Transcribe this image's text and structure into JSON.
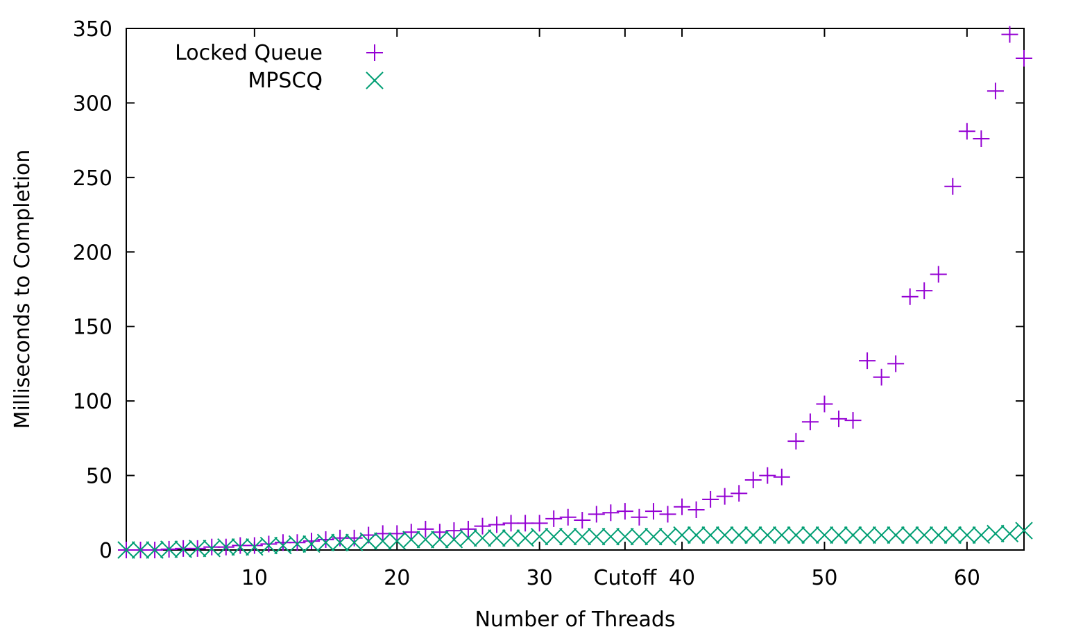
{
  "chart_data": {
    "type": "scatter",
    "title": "",
    "xlabel": "Number of Threads",
    "ylabel": "Milliseconds to Completion",
    "xlim": [
      1,
      64
    ],
    "ylim": [
      0,
      350
    ],
    "x_ticks": [
      {
        "value": 10,
        "label": "10"
      },
      {
        "value": 20,
        "label": "20"
      },
      {
        "value": 30,
        "label": "30"
      },
      {
        "value": 36,
        "label": "Cutoff"
      },
      {
        "value": 40,
        "label": "40"
      },
      {
        "value": 50,
        "label": "50"
      },
      {
        "value": 60,
        "label": "60"
      }
    ],
    "y_ticks": [
      0,
      50,
      100,
      150,
      200,
      250,
      300,
      350
    ],
    "y_tick_labels": [
      "0",
      "50",
      "100",
      "150",
      "200",
      "250",
      "300",
      "350"
    ],
    "grid": false,
    "legend_position": "top-left",
    "series": [
      {
        "name": "Locked Queue",
        "marker": "plus",
        "color": "#9400d3",
        "x": [
          1,
          2,
          3,
          4,
          5,
          6,
          7,
          8,
          9,
          10,
          11,
          12,
          13,
          14,
          15,
          16,
          17,
          18,
          19,
          20,
          21,
          22,
          23,
          24,
          25,
          26,
          27,
          28,
          29,
          30,
          31,
          32,
          33,
          34,
          35,
          36,
          37,
          38,
          39,
          40,
          41,
          42,
          43,
          44,
          45,
          46,
          47,
          48,
          49,
          50,
          51,
          52,
          53,
          54,
          55,
          56,
          57,
          58,
          59,
          60,
          61,
          62,
          63,
          64
        ],
        "y": [
          0,
          0,
          0,
          0.5,
          1,
          1,
          2,
          2,
          3,
          3,
          4,
          5,
          5,
          6,
          7,
          8,
          8,
          10,
          11,
          11,
          12,
          14,
          12,
          13,
          14,
          16,
          17,
          18,
          18,
          18,
          21,
          22,
          20,
          24,
          25,
          26,
          22,
          26,
          24,
          29,
          27,
          34,
          36,
          38,
          47,
          50,
          49,
          73,
          86,
          98,
          88,
          87,
          127,
          116,
          125,
          170,
          174,
          185,
          244,
          281,
          276,
          308,
          346,
          330
        ]
      },
      {
        "name": "MPSCQ",
        "marker": "x",
        "color": "#009e73",
        "x": [
          1,
          2,
          3,
          4,
          5,
          6,
          7,
          8,
          9,
          10,
          11,
          12,
          13,
          14,
          15,
          16,
          17,
          18,
          19,
          20,
          21,
          22,
          23,
          24,
          25,
          26,
          27,
          28,
          29,
          30,
          31,
          32,
          33,
          34,
          35,
          36,
          37,
          38,
          39,
          40,
          41,
          42,
          43,
          44,
          45,
          46,
          47,
          48,
          49,
          50,
          51,
          52,
          53,
          54,
          55,
          56,
          57,
          58,
          59,
          60,
          61,
          62,
          63,
          64
        ],
        "y": [
          0,
          0,
          0,
          0.5,
          0.5,
          1,
          1,
          2,
          2,
          2,
          3,
          3,
          4,
          4,
          5,
          5,
          5,
          6,
          6,
          6,
          7,
          7,
          7,
          7,
          8,
          8,
          8,
          8,
          8,
          9,
          9,
          9,
          9,
          9,
          9,
          9,
          9,
          9,
          9,
          10,
          10,
          10,
          10,
          10,
          10,
          10,
          10,
          10,
          10,
          10,
          10,
          10,
          10,
          10,
          10,
          10,
          10,
          10,
          10,
          10,
          10,
          11,
          11,
          13
        ]
      }
    ]
  }
}
